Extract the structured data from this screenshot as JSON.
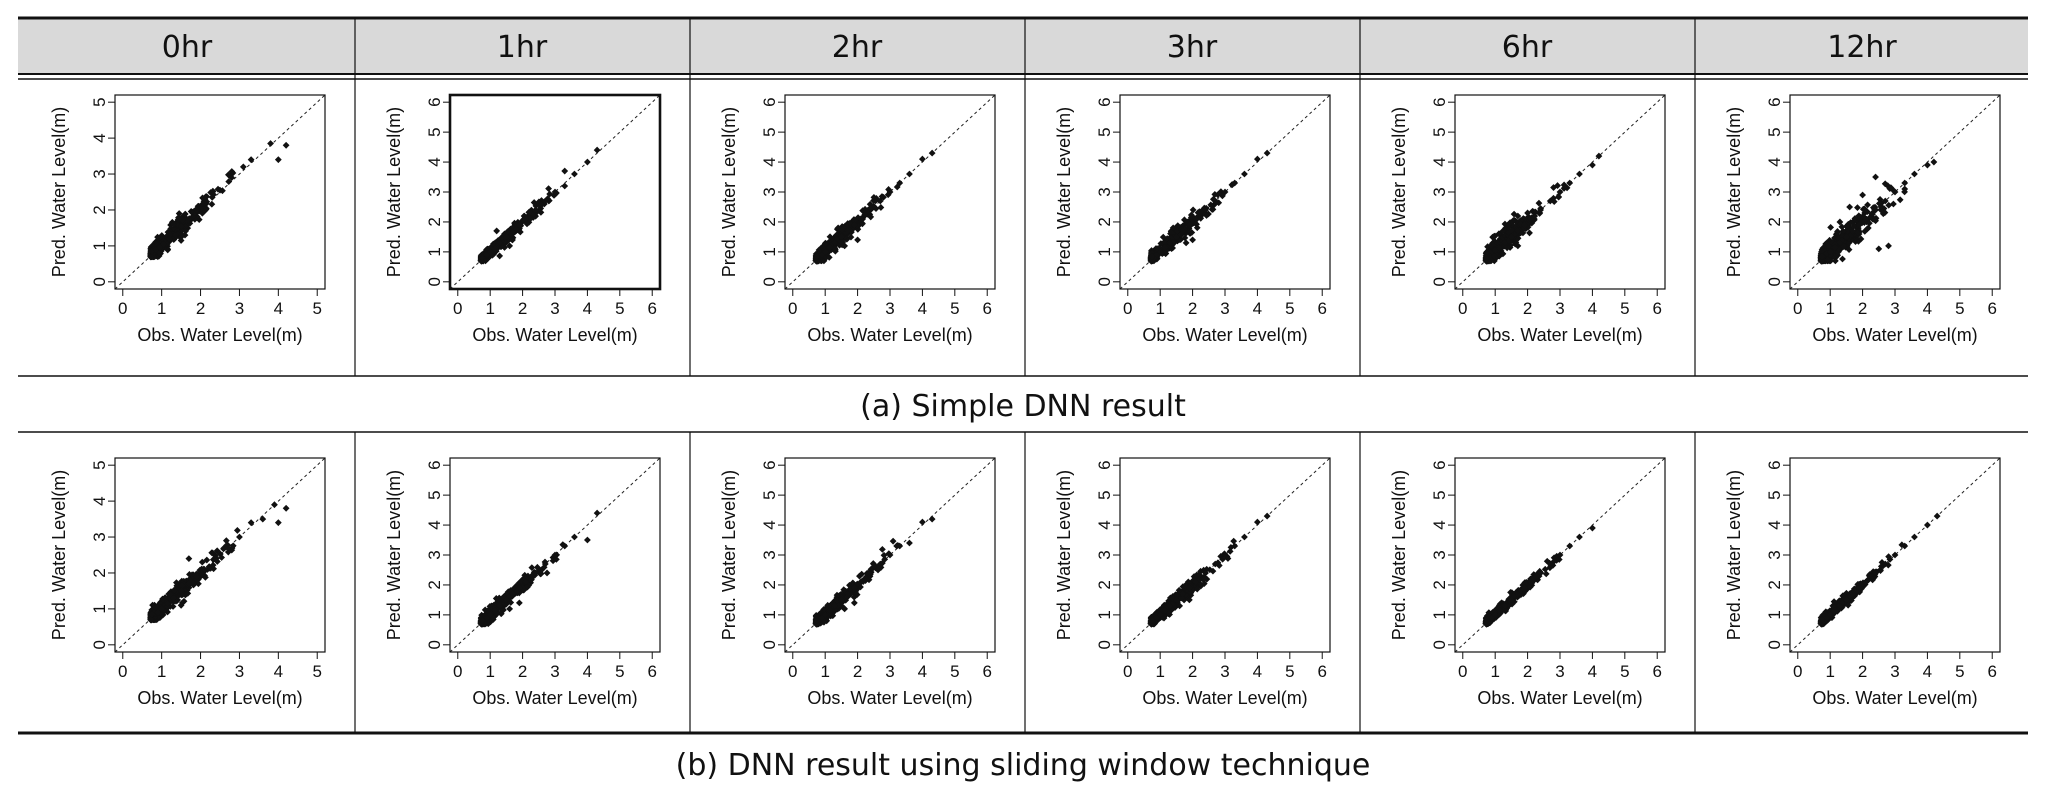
{
  "column_headers": [
    "0hr",
    "1hr",
    "2hr",
    "3hr",
    "6hr",
    "12hr"
  ],
  "row_captions": [
    "(a) Simple DNN result",
    "(b) DNN result using sliding window technique"
  ],
  "colors": {
    "header_bg": "#d9d9d9",
    "marker": "#111111",
    "rule": "#111111"
  },
  "chart_data": [
    {
      "type": "scatter",
      "row": "(a) Simple DNN result",
      "column": "0hr",
      "xlabel": "Obs. Water Level(m)",
      "ylabel": "Pred. Water Level(m)",
      "xlim": [
        0,
        5
      ],
      "ylim": [
        0,
        5
      ],
      "xticks": [
        0,
        1,
        2,
        3,
        4,
        5
      ],
      "yticks": [
        0,
        1,
        2,
        3,
        4,
        5
      ],
      "reference_line": "1:1 dashed",
      "spread": 0.12,
      "points": [
        [
          0.75,
          0.85
        ],
        [
          0.85,
          0.9
        ],
        [
          0.95,
          0.95
        ],
        [
          1.05,
          1.05
        ],
        [
          1.2,
          1.2
        ],
        [
          1.35,
          1.3
        ],
        [
          1.5,
          1.55
        ],
        [
          1.7,
          1.75
        ],
        [
          1.9,
          2.0
        ],
        [
          2.1,
          2.2
        ],
        [
          2.3,
          2.35
        ],
        [
          2.5,
          2.55
        ],
        [
          2.8,
          2.9
        ],
        [
          3.1,
          3.2
        ],
        [
          3.3,
          3.4
        ],
        [
          3.8,
          3.85
        ],
        [
          4.0,
          3.4
        ],
        [
          4.2,
          3.8
        ],
        [
          1.5,
          1.15
        ],
        [
          1.6,
          1.3
        ],
        [
          1.45,
          1.9
        ],
        [
          1.3,
          1.6
        ]
      ]
    },
    {
      "type": "scatter",
      "row": "(a) Simple DNN result",
      "column": "1hr",
      "xlabel": "Obs. Water Level(m)",
      "ylabel": "Pred. Water Level(m)",
      "xlim": [
        0,
        6
      ],
      "ylim": [
        0,
        6
      ],
      "xticks": [
        0,
        1,
        2,
        3,
        4,
        5,
        6
      ],
      "yticks": [
        0,
        1,
        2,
        3,
        4,
        5,
        6
      ],
      "reference_line": "1:1 dashed",
      "spread": 0.1,
      "points": [
        [
          0.75,
          0.8
        ],
        [
          0.9,
          0.9
        ],
        [
          1.0,
          1.0
        ],
        [
          1.15,
          1.1
        ],
        [
          1.3,
          1.3
        ],
        [
          1.5,
          1.5
        ],
        [
          1.7,
          1.65
        ],
        [
          1.9,
          1.9
        ],
        [
          2.1,
          2.1
        ],
        [
          2.4,
          2.4
        ],
        [
          2.7,
          2.7
        ],
        [
          3.0,
          3.0
        ],
        [
          3.3,
          3.2
        ],
        [
          3.6,
          3.6
        ],
        [
          4.0,
          4.0
        ],
        [
          4.3,
          4.4
        ],
        [
          1.2,
          1.7
        ],
        [
          1.6,
          1.2
        ],
        [
          3.3,
          3.7
        ]
      ]
    },
    {
      "type": "scatter",
      "row": "(a) Simple DNN result",
      "column": "2hr",
      "xlabel": "Obs. Water Level(m)",
      "ylabel": "Pred. Water Level(m)",
      "xlim": [
        0,
        6
      ],
      "ylim": [
        0,
        6
      ],
      "xticks": [
        0,
        1,
        2,
        3,
        4,
        5,
        6
      ],
      "yticks": [
        0,
        1,
        2,
        3,
        4,
        5,
        6
      ],
      "reference_line": "1:1 dashed",
      "spread": 0.12,
      "points": [
        [
          0.75,
          0.85
        ],
        [
          0.9,
          0.9
        ],
        [
          1.0,
          1.0
        ],
        [
          1.15,
          1.15
        ],
        [
          1.3,
          1.3
        ],
        [
          1.5,
          1.5
        ],
        [
          1.7,
          1.7
        ],
        [
          1.9,
          1.9
        ],
        [
          2.1,
          2.1
        ],
        [
          2.4,
          2.45
        ],
        [
          2.7,
          2.7
        ],
        [
          3.0,
          3.0
        ],
        [
          3.3,
          3.3
        ],
        [
          3.6,
          3.6
        ],
        [
          4.0,
          4.1
        ],
        [
          4.3,
          4.3
        ],
        [
          1.4,
          1.8
        ],
        [
          1.6,
          1.2
        ],
        [
          2.0,
          1.4
        ]
      ]
    },
    {
      "type": "scatter",
      "row": "(a) Simple DNN result",
      "column": "3hr",
      "xlabel": "Obs. Water Level(m)",
      "ylabel": "Pred. Water Level(m)",
      "xlim": [
        0,
        6
      ],
      "ylim": [
        0,
        6
      ],
      "xticks": [
        0,
        1,
        2,
        3,
        4,
        5,
        6
      ],
      "yticks": [
        0,
        1,
        2,
        3,
        4,
        5,
        6
      ],
      "reference_line": "1:1 dashed",
      "spread": 0.12,
      "points": [
        [
          0.75,
          0.85
        ],
        [
          0.9,
          0.9
        ],
        [
          1.0,
          1.0
        ],
        [
          1.15,
          1.15
        ],
        [
          1.3,
          1.3
        ],
        [
          1.5,
          1.5
        ],
        [
          1.7,
          1.7
        ],
        [
          1.9,
          1.9
        ],
        [
          2.1,
          2.1
        ],
        [
          2.4,
          2.4
        ],
        [
          2.7,
          2.7
        ],
        [
          3.0,
          3.0
        ],
        [
          3.3,
          3.3
        ],
        [
          3.6,
          3.6
        ],
        [
          4.0,
          4.1
        ],
        [
          4.3,
          4.3
        ],
        [
          1.4,
          1.8
        ],
        [
          1.8,
          1.3
        ],
        [
          2.0,
          1.4
        ]
      ]
    },
    {
      "type": "scatter",
      "row": "(a) Simple DNN result",
      "column": "6hr",
      "xlabel": "Obs. Water Level(m)",
      "ylabel": "Pred. Water Level(m)",
      "xlim": [
        0,
        6
      ],
      "ylim": [
        0,
        6
      ],
      "xticks": [
        0,
        1,
        2,
        3,
        4,
        5,
        6
      ],
      "yticks": [
        0,
        1,
        2,
        3,
        4,
        5,
        6
      ],
      "reference_line": "1:1 dashed",
      "spread": 0.15,
      "points": [
        [
          0.75,
          1.0
        ],
        [
          0.9,
          1.0
        ],
        [
          1.0,
          1.05
        ],
        [
          1.15,
          1.1
        ],
        [
          1.3,
          1.3
        ],
        [
          1.5,
          1.5
        ],
        [
          1.7,
          1.7
        ],
        [
          1.9,
          1.9
        ],
        [
          2.1,
          2.1
        ],
        [
          2.4,
          2.4
        ],
        [
          2.7,
          2.7
        ],
        [
          3.0,
          3.0
        ],
        [
          3.3,
          3.3
        ],
        [
          3.6,
          3.6
        ],
        [
          4.0,
          3.9
        ],
        [
          4.2,
          4.2
        ],
        [
          1.4,
          1.9
        ],
        [
          1.7,
          1.2
        ],
        [
          2.0,
          2.3
        ]
      ]
    },
    {
      "type": "scatter",
      "row": "(a) Simple DNN result",
      "column": "12hr",
      "xlabel": "Obs. Water Level(m)",
      "ylabel": "Pred. Water Level(m)",
      "xlim": [
        0,
        6
      ],
      "ylim": [
        0,
        6
      ],
      "xticks": [
        0,
        1,
        2,
        3,
        4,
        5,
        6
      ],
      "yticks": [
        0,
        1,
        2,
        3,
        4,
        5,
        6
      ],
      "reference_line": "1:1 dashed",
      "spread": 0.22,
      "points": [
        [
          0.75,
          0.85
        ],
        [
          0.9,
          0.95
        ],
        [
          1.0,
          1.0
        ],
        [
          1.15,
          1.15
        ],
        [
          1.3,
          1.3
        ],
        [
          1.5,
          1.5
        ],
        [
          1.7,
          1.7
        ],
        [
          1.9,
          1.9
        ],
        [
          2.1,
          2.1
        ],
        [
          2.4,
          2.4
        ],
        [
          2.7,
          2.7
        ],
        [
          3.0,
          3.0
        ],
        [
          3.3,
          3.3
        ],
        [
          3.6,
          3.6
        ],
        [
          4.0,
          3.9
        ],
        [
          4.2,
          4.0
        ],
        [
          1.3,
          2.0
        ],
        [
          1.6,
          2.5
        ],
        [
          2.0,
          2.9
        ],
        [
          2.4,
          3.5
        ],
        [
          2.5,
          1.1
        ],
        [
          2.8,
          1.2
        ],
        [
          3.3,
          3.1
        ]
      ]
    },
    {
      "type": "scatter",
      "row": "(b) DNN result using sliding window technique",
      "column": "0hr",
      "xlabel": "Obs. Water Level(m)",
      "ylabel": "Pred. Water Level(m)",
      "xlim": [
        0,
        5
      ],
      "ylim": [
        0,
        5
      ],
      "xticks": [
        0,
        1,
        2,
        3,
        4,
        5
      ],
      "yticks": [
        0,
        1,
        2,
        3,
        4,
        5
      ],
      "reference_line": "1:1 dashed",
      "spread": 0.12,
      "points": [
        [
          0.75,
          0.85
        ],
        [
          0.9,
          0.9
        ],
        [
          1.0,
          1.0
        ],
        [
          1.15,
          1.15
        ],
        [
          1.3,
          1.3
        ],
        [
          1.5,
          1.5
        ],
        [
          1.7,
          1.7
        ],
        [
          1.9,
          1.9
        ],
        [
          2.1,
          2.1
        ],
        [
          2.4,
          2.4
        ],
        [
          2.7,
          2.7
        ],
        [
          3.0,
          3.0
        ],
        [
          3.3,
          3.4
        ],
        [
          3.6,
          3.5
        ],
        [
          3.9,
          3.9
        ],
        [
          4.2,
          3.8
        ],
        [
          4.0,
          3.4
        ],
        [
          1.5,
          1.1
        ],
        [
          1.7,
          2.4
        ]
      ]
    },
    {
      "type": "scatter",
      "row": "(b) DNN result using sliding window technique",
      "column": "1hr",
      "xlabel": "Obs. Water Level(m)",
      "ylabel": "Pred. Water Level(m)",
      "xlim": [
        0,
        6
      ],
      "ylim": [
        0,
        6
      ],
      "xticks": [
        0,
        1,
        2,
        3,
        4,
        5,
        6
      ],
      "yticks": [
        0,
        1,
        2,
        3,
        4,
        5,
        6
      ],
      "reference_line": "1:1 dashed",
      "spread": 0.12,
      "points": [
        [
          0.75,
          0.8
        ],
        [
          0.9,
          0.9
        ],
        [
          1.0,
          1.0
        ],
        [
          1.15,
          1.15
        ],
        [
          1.3,
          1.3
        ],
        [
          1.5,
          1.5
        ],
        [
          1.7,
          1.7
        ],
        [
          1.9,
          1.9
        ],
        [
          2.1,
          2.1
        ],
        [
          2.4,
          2.4
        ],
        [
          2.7,
          2.7
        ],
        [
          3.0,
          3.0
        ],
        [
          3.3,
          3.3
        ],
        [
          3.6,
          3.6
        ],
        [
          4.0,
          3.5
        ],
        [
          4.3,
          4.4
        ],
        [
          1.6,
          1.2
        ],
        [
          1.9,
          1.4
        ]
      ]
    },
    {
      "type": "scatter",
      "row": "(b) DNN result using sliding window technique",
      "column": "2hr",
      "xlabel": "Obs. Water Level(m)",
      "ylabel": "Pred. Water Level(m)",
      "xlim": [
        0,
        6
      ],
      "ylim": [
        0,
        6
      ],
      "xticks": [
        0,
        1,
        2,
        3,
        4,
        5,
        6
      ],
      "yticks": [
        0,
        1,
        2,
        3,
        4,
        5,
        6
      ],
      "reference_line": "1:1 dashed",
      "spread": 0.12,
      "points": [
        [
          0.75,
          0.8
        ],
        [
          0.9,
          0.9
        ],
        [
          1.0,
          1.0
        ],
        [
          1.15,
          1.15
        ],
        [
          1.3,
          1.3
        ],
        [
          1.5,
          1.5
        ],
        [
          1.7,
          1.7
        ],
        [
          1.9,
          1.9
        ],
        [
          2.1,
          2.1
        ],
        [
          2.4,
          2.4
        ],
        [
          2.7,
          2.7
        ],
        [
          3.0,
          3.0
        ],
        [
          3.3,
          3.3
        ],
        [
          3.6,
          3.4
        ],
        [
          4.0,
          4.1
        ],
        [
          4.3,
          4.2
        ],
        [
          1.6,
          1.2
        ],
        [
          1.9,
          1.4
        ]
      ]
    },
    {
      "type": "scatter",
      "row": "(b) DNN result using sliding window technique",
      "column": "3hr",
      "xlabel": "Obs. Water Level(m)",
      "ylabel": "Pred. Water Level(m)",
      "xlim": [
        0,
        6
      ],
      "ylim": [
        0,
        6
      ],
      "xticks": [
        0,
        1,
        2,
        3,
        4,
        5,
        6
      ],
      "yticks": [
        0,
        1,
        2,
        3,
        4,
        5,
        6
      ],
      "reference_line": "1:1 dashed",
      "spread": 0.11,
      "points": [
        [
          0.75,
          0.8
        ],
        [
          0.9,
          0.9
        ],
        [
          1.0,
          1.0
        ],
        [
          1.15,
          1.15
        ],
        [
          1.3,
          1.3
        ],
        [
          1.5,
          1.5
        ],
        [
          1.7,
          1.7
        ],
        [
          1.9,
          1.9
        ],
        [
          2.1,
          2.1
        ],
        [
          2.4,
          2.4
        ],
        [
          2.7,
          2.7
        ],
        [
          3.0,
          3.0
        ],
        [
          3.3,
          3.3
        ],
        [
          3.6,
          3.6
        ],
        [
          4.0,
          4.1
        ],
        [
          4.3,
          4.3
        ],
        [
          1.6,
          1.3
        ],
        [
          1.9,
          1.5
        ]
      ]
    },
    {
      "type": "scatter",
      "row": "(b) DNN result using sliding window technique",
      "column": "6hr",
      "xlabel": "Obs. Water Level(m)",
      "ylabel": "Pred. Water Level(m)",
      "xlim": [
        0,
        6
      ],
      "ylim": [
        0,
        6
      ],
      "xticks": [
        0,
        1,
        2,
        3,
        4,
        5,
        6
      ],
      "yticks": [
        0,
        1,
        2,
        3,
        4,
        5,
        6
      ],
      "reference_line": "1:1 dashed",
      "spread": 0.07,
      "points": [
        [
          0.75,
          0.85
        ],
        [
          0.9,
          0.9
        ],
        [
          1.0,
          1.0
        ],
        [
          1.15,
          1.15
        ],
        [
          1.3,
          1.3
        ],
        [
          1.5,
          1.5
        ],
        [
          1.7,
          1.7
        ],
        [
          1.9,
          1.9
        ],
        [
          2.1,
          2.1
        ],
        [
          2.4,
          2.4
        ],
        [
          2.7,
          2.7
        ],
        [
          3.0,
          3.0
        ],
        [
          3.3,
          3.3
        ],
        [
          3.6,
          3.6
        ],
        [
          4.0,
          3.9
        ]
      ]
    },
    {
      "type": "scatter",
      "row": "(b) DNN result using sliding window technique",
      "column": "12hr",
      "xlabel": "Obs. Water Level(m)",
      "ylabel": "Pred. Water Level(m)",
      "xlim": [
        0,
        6
      ],
      "ylim": [
        0,
        6
      ],
      "xticks": [
        0,
        1,
        2,
        3,
        4,
        5,
        6
      ],
      "yticks": [
        0,
        1,
        2,
        3,
        4,
        5,
        6
      ],
      "reference_line": "1:1 dashed",
      "spread": 0.07,
      "points": [
        [
          0.75,
          0.85
        ],
        [
          0.9,
          0.9
        ],
        [
          1.0,
          1.0
        ],
        [
          1.15,
          1.15
        ],
        [
          1.3,
          1.3
        ],
        [
          1.5,
          1.5
        ],
        [
          1.7,
          1.7
        ],
        [
          1.9,
          1.9
        ],
        [
          2.1,
          2.1
        ],
        [
          2.4,
          2.4
        ],
        [
          2.7,
          2.7
        ],
        [
          3.0,
          3.0
        ],
        [
          3.3,
          3.3
        ],
        [
          3.6,
          3.6
        ],
        [
          4.0,
          4.0
        ],
        [
          4.3,
          4.3
        ]
      ]
    }
  ]
}
